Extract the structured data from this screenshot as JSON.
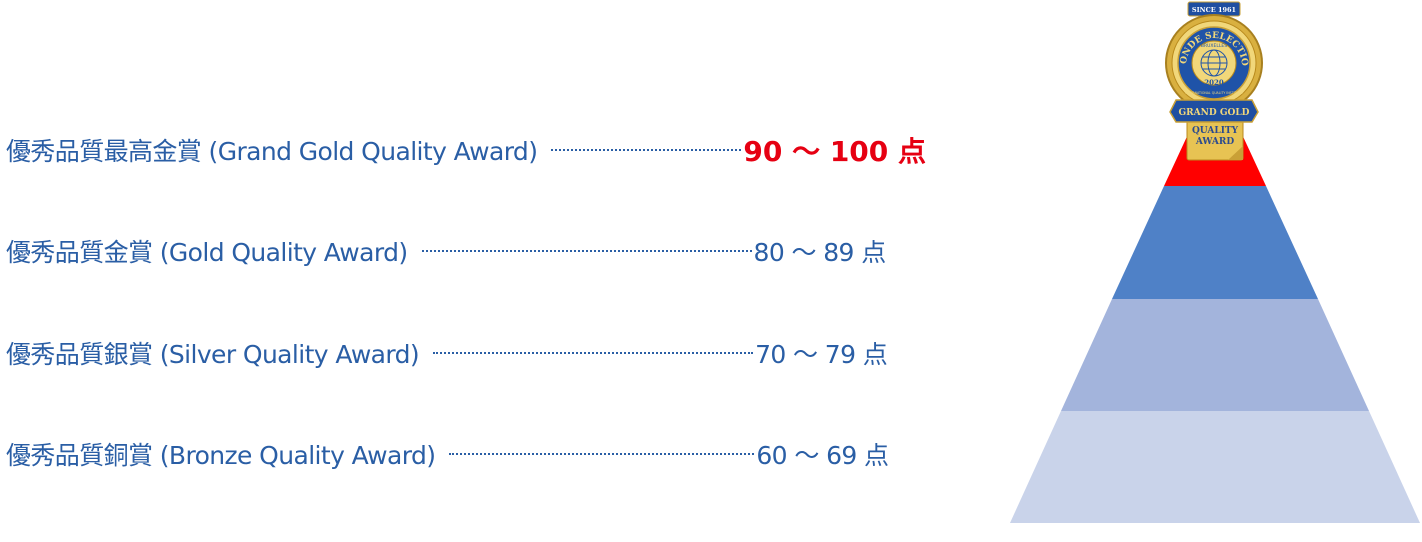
{
  "levels": [
    {
      "label": "優秀品質最高金賞 (Grand Gold Quality Award)",
      "score": "90 ～ 100 点",
      "color": "#ff0000"
    },
    {
      "label": "優秀品質金賞 (Gold Quality Award)",
      "score": "80 ～ 89 点",
      "color": "#4f81c7"
    },
    {
      "label": "優秀品質銀賞 (Silver Quality Award)",
      "score": "70 ～ 79 点",
      "color": "#a3b4dc"
    },
    {
      "label": "優秀品質銅賞 (Bronze Quality Award)",
      "score": "60 ～ 69 点",
      "color": "#c9d3ea"
    }
  ],
  "medal": {
    "since": "SINCE 1961",
    "name": "MONDE SELECTION",
    "city": "BRUXELLES",
    "year": "2020",
    "sub": "INTERNATIONAL QUALITY INSTITUTE",
    "ribbon": "GRAND GOLD",
    "tag_line1": "QUALITY",
    "tag_line2": "AWARD"
  },
  "colors": {
    "text": "#2a5ea5",
    "highlight": "#e60012",
    "gold": "#d4a62a"
  }
}
